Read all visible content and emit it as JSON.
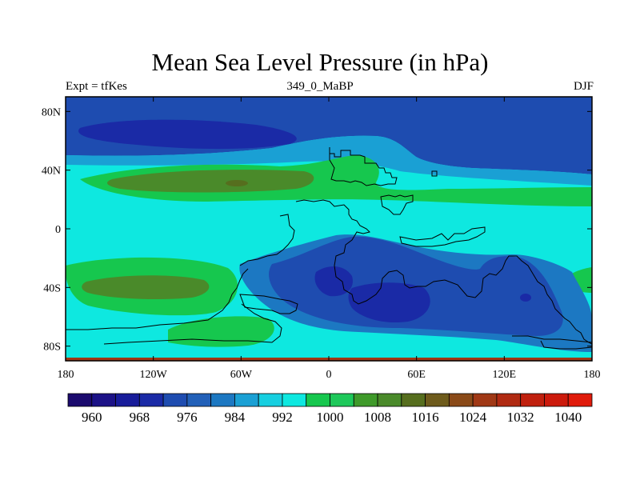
{
  "title": "Mean Sea Level Pressure (in hPa)",
  "subtitle_left": "Expt = tfKes",
  "subtitle_center": "349_0_MaBP",
  "subtitle_right": "DJF",
  "y_ticks": [
    {
      "value": 80,
      "label": "80N"
    },
    {
      "value": 40,
      "label": "40N"
    },
    {
      "value": 0,
      "label": "0"
    },
    {
      "value": -40,
      "label": "40S"
    },
    {
      "value": -80,
      "label": "80S"
    }
  ],
  "x_ticks": [
    {
      "value": -180,
      "label": "180"
    },
    {
      "value": -120,
      "label": "120W"
    },
    {
      "value": -60,
      "label": "60W"
    },
    {
      "value": 0,
      "label": "0"
    },
    {
      "value": 60,
      "label": "60E"
    },
    {
      "value": 120,
      "label": "120E"
    },
    {
      "value": 180,
      "label": "180"
    }
  ],
  "colorbar": {
    "colors": [
      "#1b0a6e",
      "#1c1287",
      "#181c9a",
      "#1a2aa6",
      "#1e4cb0",
      "#2260b8",
      "#1c78c2",
      "#1aa0d4",
      "#17cfe0",
      "#0ee8e0",
      "#16c74e",
      "#1ec85a",
      "#3f9a2a",
      "#4a8a2a",
      "#566e1e",
      "#6e5b1c",
      "#8a4a18",
      "#a03815",
      "#b02a12",
      "#c0200e",
      "#cc1a0c",
      "#e01b0b"
    ],
    "labels": [
      "960",
      "968",
      "976",
      "984",
      "992",
      "1000",
      "1008",
      "1016",
      "1024",
      "1032",
      "1040"
    ]
  }
}
